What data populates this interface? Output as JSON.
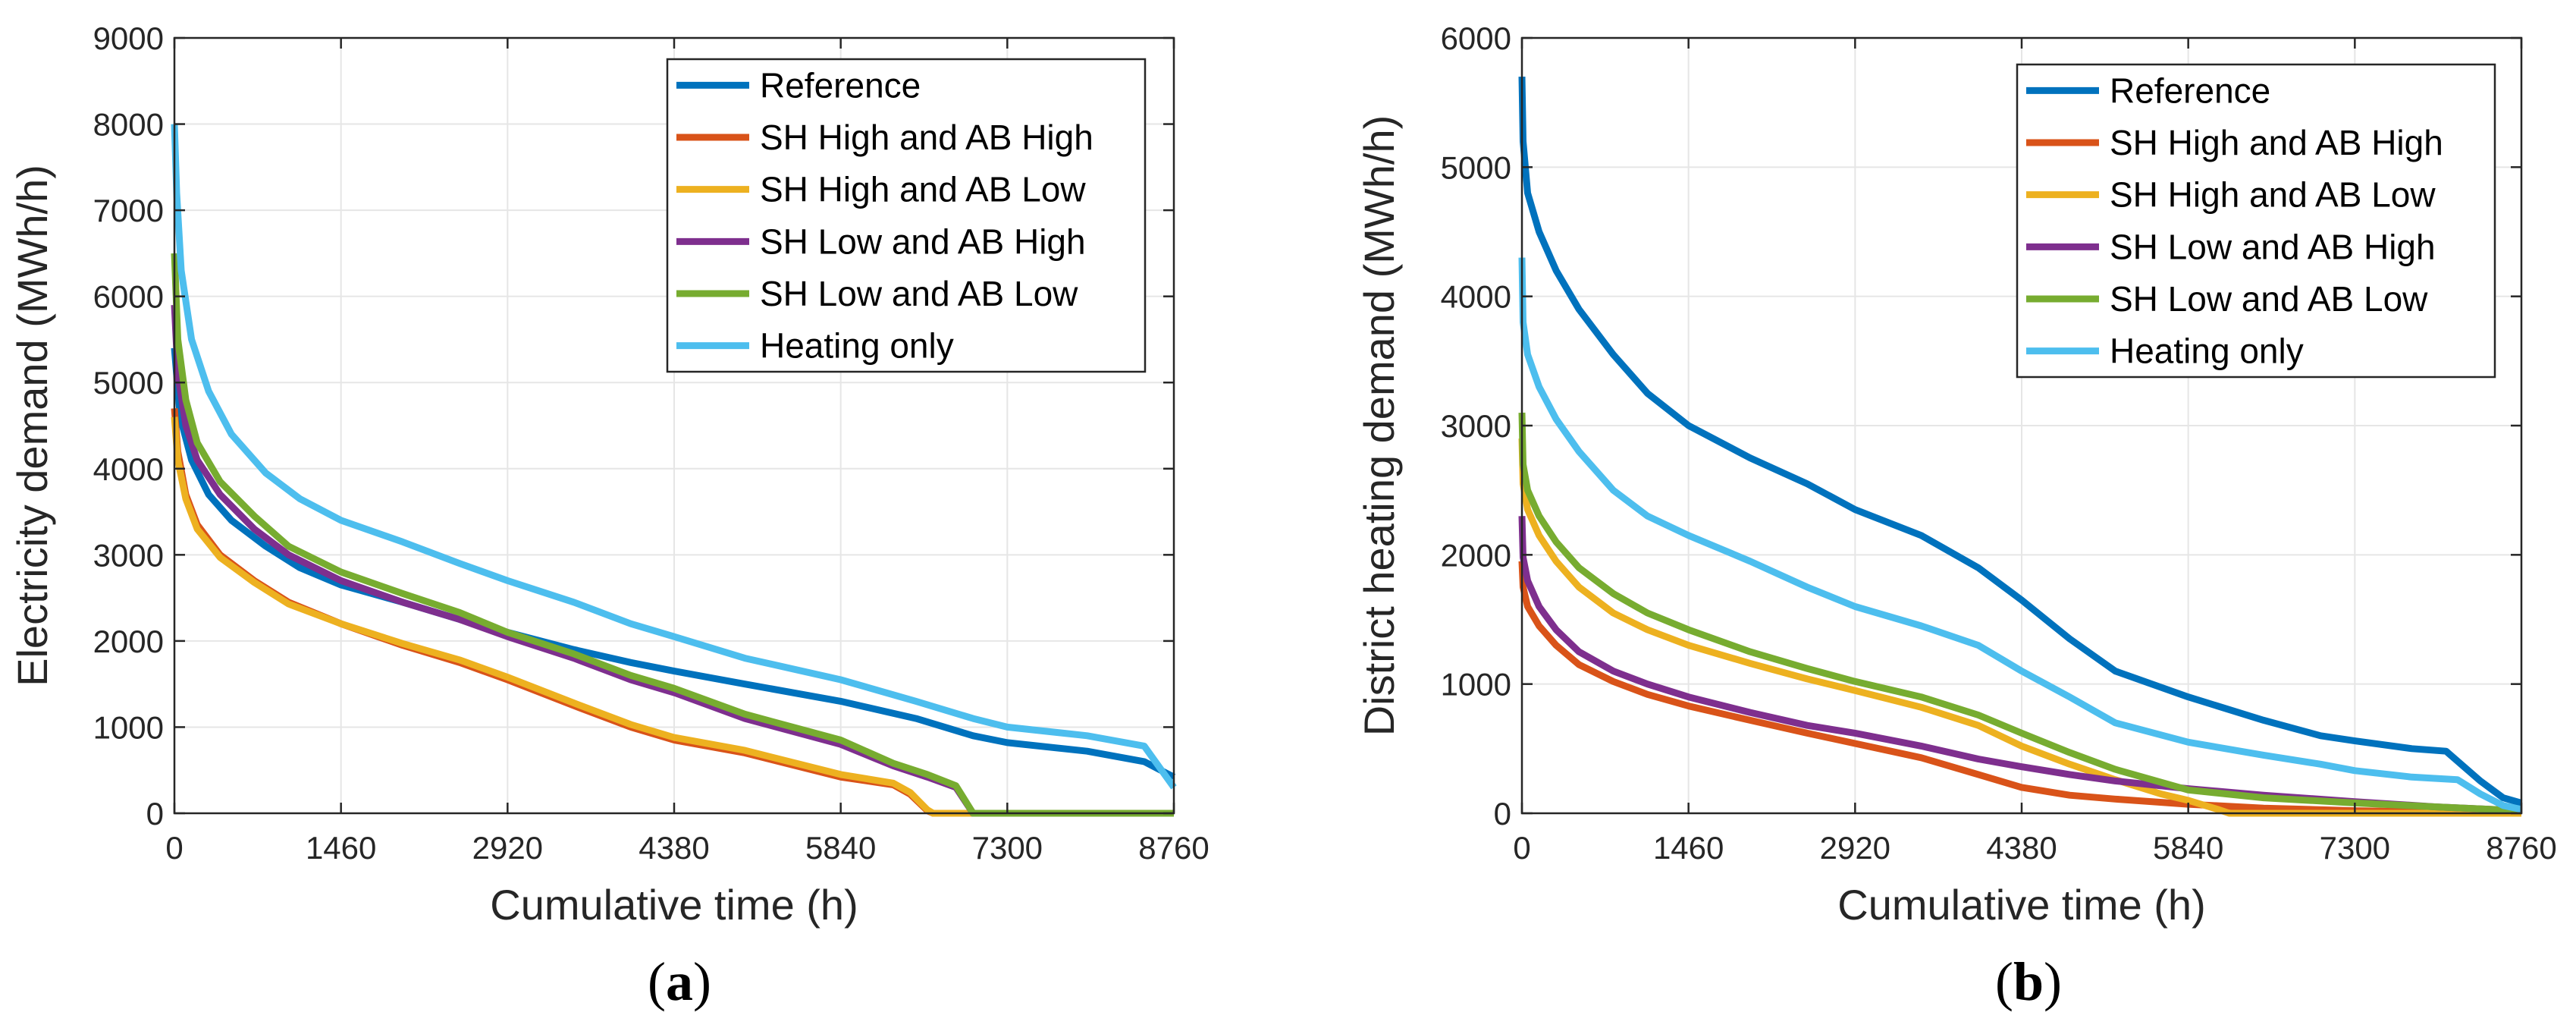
{
  "colors": {
    "reference": "#0072BD",
    "sh_high_ab_high": "#D95319",
    "sh_high_ab_low": "#EDB120",
    "sh_low_ab_high": "#7E2F8E",
    "sh_low_ab_low": "#77AC30",
    "heating_only": "#4DBEEE",
    "grid": "#e6e6e6",
    "axis": "#262626"
  },
  "chart_data": [
    {
      "type": "line",
      "panel": "a",
      "panel_open": "(",
      "panel_close": ")",
      "xlabel": "Cumulative time (h)",
      "ylabel": "Electricity demand (MWh/h)",
      "xlim": [
        0,
        8760
      ],
      "ylim": [
        0,
        9000
      ],
      "xticks": [
        0,
        1460,
        2920,
        4380,
        5840,
        7300,
        8760
      ],
      "yticks": [
        0,
        1000,
        2000,
        3000,
        4000,
        5000,
        6000,
        7000,
        8000,
        9000
      ],
      "grid": true,
      "legend_position": "top-right",
      "series": [
        {
          "name": "Reference",
          "color_key": "reference",
          "x": [
            0,
            50,
            150,
            300,
            500,
            800,
            1100,
            1460,
            2000,
            2500,
            2920,
            3500,
            4000,
            4380,
            5000,
            5840,
            6500,
            7000,
            7300,
            8000,
            8500,
            8760
          ],
          "y": [
            5400,
            4600,
            4100,
            3700,
            3400,
            3100,
            2850,
            2650,
            2450,
            2250,
            2100,
            1900,
            1750,
            1650,
            1500,
            1300,
            1100,
            900,
            820,
            720,
            600,
            420
          ]
        },
        {
          "name": "SH High and AB High",
          "color_key": "sh_high_ab_high",
          "x": [
            0,
            30,
            100,
            200,
            400,
            700,
            1000,
            1460,
            2000,
            2500,
            2920,
            3500,
            4000,
            4380,
            5000,
            5840,
            6300,
            6450,
            6600,
            6650,
            7300,
            8760
          ],
          "y": [
            4700,
            4200,
            3700,
            3350,
            3000,
            2700,
            2450,
            2200,
            1950,
            1750,
            1550,
            1250,
            1000,
            850,
            700,
            420,
            330,
            220,
            30,
            0,
            0,
            0
          ]
        },
        {
          "name": "SH High and AB Low",
          "color_key": "sh_high_ab_low",
          "x": [
            0,
            30,
            100,
            200,
            400,
            700,
            1000,
            1460,
            2000,
            2500,
            2920,
            3500,
            4000,
            4380,
            5000,
            5840,
            6300,
            6450,
            6600,
            6650,
            7300,
            8760
          ],
          "y": [
            4600,
            4100,
            3650,
            3300,
            2970,
            2680,
            2430,
            2200,
            1970,
            1780,
            1580,
            1280,
            1030,
            880,
            730,
            450,
            350,
            240,
            40,
            0,
            0,
            0
          ]
        },
        {
          "name": "SH Low and AB High",
          "color_key": "sh_low_ab_high",
          "x": [
            0,
            30,
            100,
            200,
            400,
            700,
            1000,
            1460,
            2000,
            2500,
            2920,
            3500,
            4000,
            4380,
            5000,
            5840,
            6300,
            6600,
            6850,
            7000,
            7300,
            8760
          ],
          "y": [
            5900,
            5100,
            4500,
            4100,
            3700,
            3300,
            3000,
            2700,
            2450,
            2250,
            2050,
            1800,
            1550,
            1400,
            1100,
            800,
            550,
            420,
            300,
            0,
            0,
            0
          ]
        },
        {
          "name": "SH Low and AB Low",
          "color_key": "sh_low_ab_low",
          "x": [
            0,
            30,
            100,
            200,
            400,
            700,
            1000,
            1460,
            2000,
            2500,
            2920,
            3500,
            4000,
            4380,
            5000,
            5840,
            6300,
            6600,
            6850,
            7000,
            7300,
            8760
          ],
          "y": [
            6500,
            5500,
            4800,
            4300,
            3850,
            3450,
            3100,
            2800,
            2550,
            2330,
            2100,
            1850,
            1600,
            1450,
            1150,
            850,
            580,
            450,
            320,
            0,
            0,
            0
          ]
        },
        {
          "name": "Heating only",
          "color_key": "heating_only",
          "x": [
            0,
            20,
            60,
            150,
            300,
            500,
            800,
            1100,
            1460,
            2000,
            2500,
            2920,
            3500,
            4000,
            4380,
            5000,
            5840,
            6500,
            7000,
            7300,
            8000,
            8500,
            8760
          ],
          "y": [
            8000,
            7200,
            6300,
            5500,
            4900,
            4400,
            3950,
            3650,
            3400,
            3150,
            2900,
            2700,
            2450,
            2200,
            2050,
            1800,
            1550,
            1300,
            1100,
            1000,
            900,
            780,
            300
          ]
        }
      ]
    },
    {
      "type": "line",
      "panel": "b",
      "panel_open": "(",
      "panel_close": ")",
      "xlabel": "Cumulative time (h)",
      "ylabel": "District heating demand (MWh/h)",
      "xlim": [
        0,
        8760
      ],
      "ylim": [
        0,
        6000
      ],
      "xticks": [
        0,
        1460,
        2920,
        4380,
        5840,
        7300,
        8760
      ],
      "yticks": [
        0,
        1000,
        2000,
        3000,
        4000,
        5000,
        6000
      ],
      "grid": true,
      "legend_position": "top-right",
      "series": [
        {
          "name": "Reference",
          "color_key": "reference",
          "x": [
            0,
            10,
            50,
            150,
            300,
            500,
            800,
            1100,
            1460,
            2000,
            2500,
            2920,
            3500,
            4000,
            4380,
            4800,
            5200,
            5840,
            6500,
            7000,
            7300,
            7800,
            8100,
            8400,
            8600,
            8760
          ],
          "y": [
            5700,
            5200,
            4800,
            4500,
            4200,
            3900,
            3550,
            3250,
            3000,
            2750,
            2550,
            2350,
            2150,
            1900,
            1650,
            1350,
            1100,
            900,
            720,
            600,
            560,
            500,
            480,
            250,
            120,
            80
          ]
        },
        {
          "name": "SH High and AB High",
          "color_key": "sh_high_ab_high",
          "x": [
            0,
            10,
            50,
            150,
            300,
            500,
            800,
            1100,
            1460,
            2000,
            2500,
            2920,
            3500,
            4000,
            4380,
            4800,
            5200,
            5840,
            6500,
            7300,
            8000,
            8760
          ],
          "y": [
            1950,
            1750,
            1600,
            1450,
            1300,
            1150,
            1020,
            920,
            830,
            720,
            620,
            540,
            430,
            300,
            200,
            140,
            110,
            70,
            40,
            20,
            10,
            0
          ]
        },
        {
          "name": "SH High and AB Low",
          "color_key": "sh_high_ab_low",
          "x": [
            0,
            10,
            50,
            150,
            300,
            500,
            800,
            1100,
            1460,
            2000,
            2500,
            2920,
            3500,
            4000,
            4380,
            4800,
            5200,
            5600,
            5840,
            6100,
            6200,
            7300,
            8760
          ],
          "y": [
            2900,
            2550,
            2350,
            2150,
            1950,
            1750,
            1550,
            1420,
            1300,
            1160,
            1040,
            950,
            820,
            680,
            520,
            380,
            260,
            150,
            100,
            30,
            0,
            0,
            0
          ]
        },
        {
          "name": "SH Low and AB High",
          "color_key": "sh_low_ab_high",
          "x": [
            0,
            10,
            50,
            150,
            300,
            500,
            800,
            1100,
            1460,
            2000,
            2500,
            2920,
            3500,
            4000,
            4380,
            4800,
            5200,
            5840,
            6500,
            7300,
            8000,
            8760
          ],
          "y": [
            2300,
            1980,
            1800,
            1600,
            1420,
            1250,
            1100,
            1000,
            900,
            780,
            680,
            620,
            520,
            420,
            360,
            300,
            250,
            190,
            140,
            90,
            50,
            20
          ]
        },
        {
          "name": "SH Low and AB Low",
          "color_key": "sh_low_ab_low",
          "x": [
            0,
            10,
            50,
            150,
            300,
            500,
            800,
            1100,
            1460,
            2000,
            2500,
            2920,
            3500,
            4000,
            4380,
            4800,
            5200,
            5840,
            6500,
            7300,
            8000,
            8760
          ],
          "y": [
            3100,
            2700,
            2500,
            2300,
            2100,
            1900,
            1700,
            1550,
            1420,
            1250,
            1120,
            1020,
            900,
            760,
            620,
            470,
            340,
            180,
            120,
            80,
            50,
            20
          ]
        },
        {
          "name": "Heating only",
          "color_key": "heating_only",
          "x": [
            0,
            10,
            50,
            150,
            300,
            500,
            800,
            1100,
            1460,
            2000,
            2500,
            2920,
            3500,
            4000,
            4380,
            4800,
            5200,
            5840,
            6500,
            7000,
            7300,
            7800,
            8200,
            8400,
            8600,
            8760
          ],
          "y": [
            4300,
            3800,
            3550,
            3300,
            3050,
            2800,
            2500,
            2300,
            2150,
            1950,
            1750,
            1600,
            1450,
            1300,
            1100,
            900,
            700,
            550,
            450,
            380,
            330,
            280,
            260,
            150,
            60,
            30
          ]
        }
      ]
    }
  ]
}
